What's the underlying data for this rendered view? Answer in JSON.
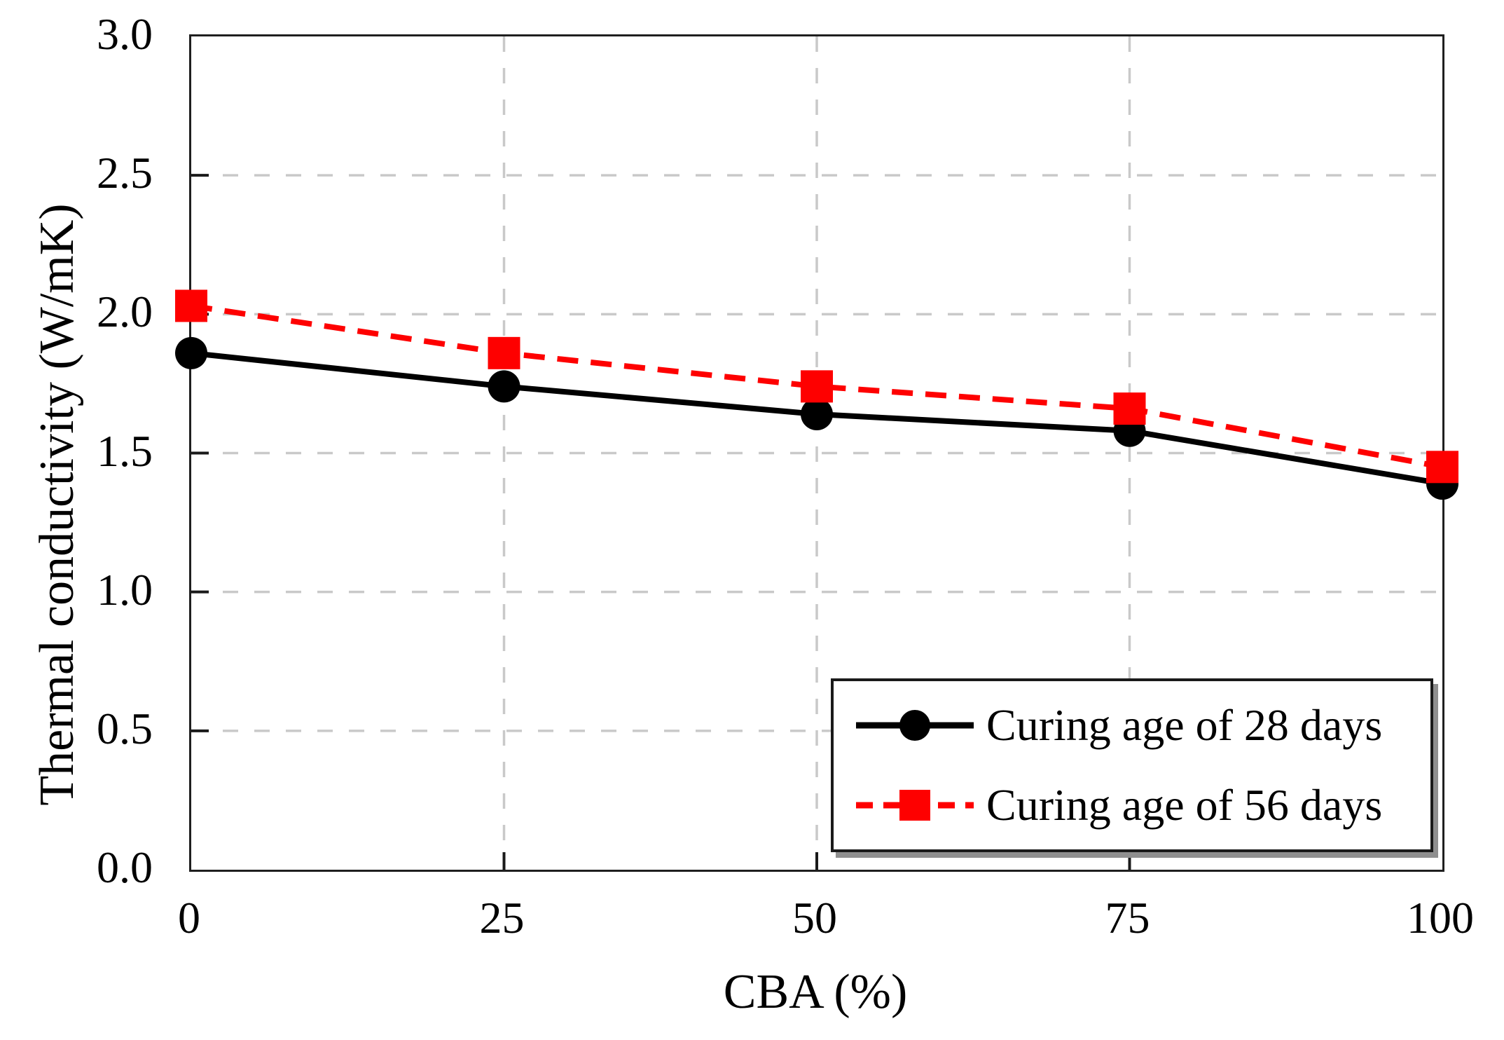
{
  "chart_data": {
    "type": "line",
    "title": "",
    "xlabel": "CBA (%)",
    "ylabel": "Thermal conductivity (W/mK)",
    "x": [
      0,
      25,
      50,
      75,
      100
    ],
    "x_tick_labels": [
      "0",
      "25",
      "50",
      "75",
      "100"
    ],
    "y_tick_labels": [
      "0.0",
      "0.5",
      "1.0",
      "1.5",
      "2.0",
      "2.5",
      "3.0"
    ],
    "xlim": [
      0,
      100
    ],
    "ylim": [
      0.0,
      3.0
    ],
    "grid": "dashed",
    "grid_color": "#c9c9c9",
    "axis_color": "#1a1a1a",
    "background_color": "#ffffff",
    "legend_position": "lower-right",
    "series": [
      {
        "name": "Curing age of 28 days",
        "color": "#000000",
        "line_style": "solid",
        "marker": "circle",
        "values": [
          1.86,
          1.74,
          1.64,
          1.58,
          1.39
        ]
      },
      {
        "name": "Curing age of 56 days",
        "color": "#fe0000",
        "line_style": "dashed",
        "marker": "square",
        "values": [
          2.03,
          1.86,
          1.74,
          1.66,
          1.45
        ]
      }
    ]
  }
}
